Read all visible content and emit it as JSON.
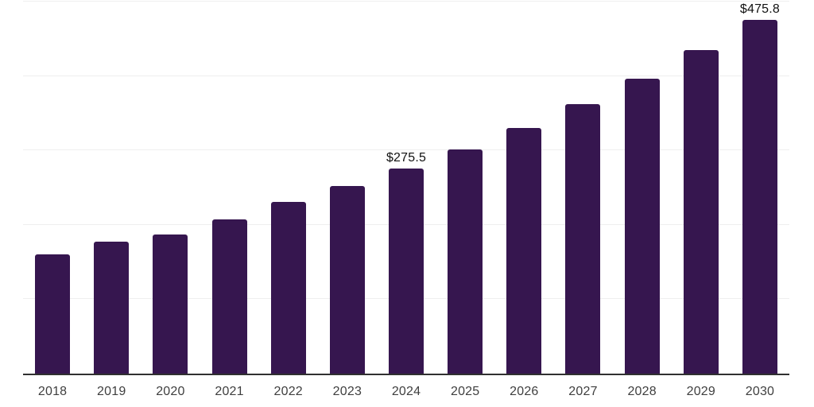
{
  "chart": {
    "background_color": "#ffffff",
    "bar_color": "#36164f",
    "grid_color": "#efefef",
    "axis_line_color": "#303030",
    "tick_label_color": "#3f3f3f",
    "data_label_color": "#111111"
  },
  "chart_data": {
    "type": "bar",
    "title": "",
    "xlabel": "",
    "ylabel": "",
    "categories": [
      "2018",
      "2019",
      "2020",
      "2021",
      "2022",
      "2023",
      "2024",
      "2025",
      "2026",
      "2027",
      "2028",
      "2029",
      "2030"
    ],
    "values": [
      160.0,
      177.0,
      186.5,
      207.5,
      230.5,
      252.0,
      275.5,
      301.8,
      330.6,
      362.1,
      396.7,
      434.5,
      475.8
    ],
    "data_labels": [
      {
        "category": "2024",
        "text": "$275.5"
      },
      {
        "category": "2030",
        "text": "$475.8"
      }
    ],
    "ylim": [
      0,
      500
    ],
    "gridline_values": [
      100,
      200,
      300,
      400,
      500
    ],
    "grid": "horizontal",
    "y_axis_labels_visible": false,
    "legend": "none"
  }
}
